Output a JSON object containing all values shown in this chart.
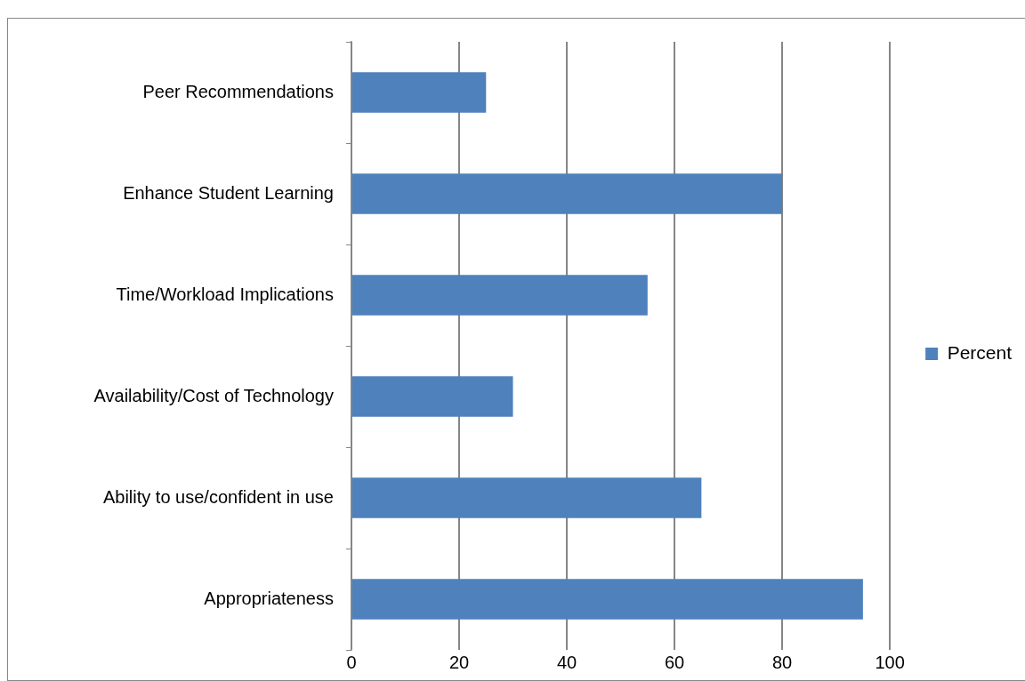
{
  "chart_data": {
    "type": "bar",
    "orientation": "horizontal",
    "categories": [
      "Peer Recommendations",
      "Enhance Student Learning",
      "Time/Workload Implications",
      "Availability/Cost of Technology",
      "Ability to use/confident in use",
      "Appropriateness"
    ],
    "series": [
      {
        "name": "Percent",
        "color": "#4f81bd",
        "values": [
          25,
          80,
          55,
          30,
          65,
          95
        ]
      }
    ],
    "xlim": [
      0,
      100
    ],
    "xticks": [
      0,
      20,
      40,
      60,
      80,
      100
    ],
    "grid": "x",
    "legend": "right"
  }
}
